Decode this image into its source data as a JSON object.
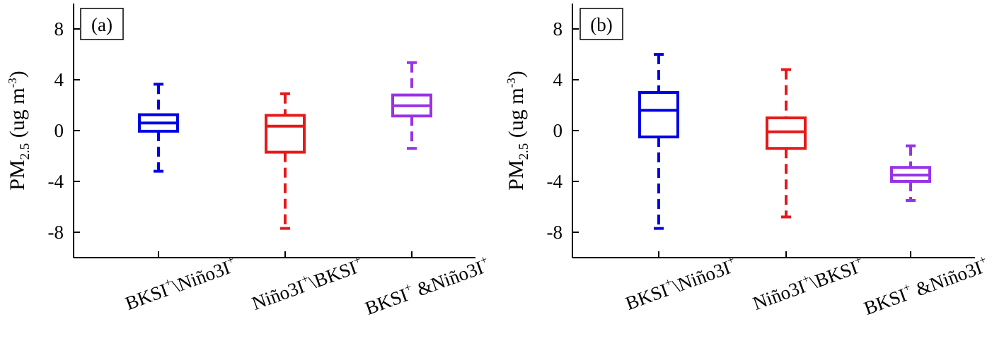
{
  "chart_data": [
    {
      "type": "box",
      "panel_label": "(a)",
      "ylabel": {
        "base": "PM",
        "sub": "2.5",
        "unit_open": " (ug m",
        "unit_sup": "-3",
        "unit_close": ")"
      },
      "ylim": [
        -10,
        10
      ],
      "yticks": [
        -8,
        -4,
        0,
        4,
        8
      ],
      "grid": false,
      "categories": [
        {
          "parts": [
            [
              "BKSI",
              ""
            ],
            [
              "+",
              "sup"
            ],
            [
              "\\Niño3I",
              ""
            ],
            [
              "+",
              "sup"
            ]
          ]
        },
        {
          "parts": [
            [
              "Niño3I",
              ""
            ],
            [
              "+",
              "sup"
            ],
            [
              "\\BKSI",
              ""
            ],
            [
              "+",
              "sup"
            ]
          ]
        },
        {
          "parts": [
            [
              "BKSI",
              ""
            ],
            [
              "+",
              "sup"
            ],
            [
              " &Niño3I",
              ""
            ],
            [
              "+",
              "sup"
            ]
          ]
        }
      ],
      "series": [
        {
          "color": "#0000e6",
          "whisker_low": -3.2,
          "q1": -0.05,
          "median": 0.6,
          "q3": 1.25,
          "whisker_high": 3.65
        },
        {
          "color": "#e61919",
          "whisker_low": -7.7,
          "q1": -1.7,
          "median": 0.35,
          "q3": 1.2,
          "whisker_high": 2.9
        },
        {
          "color": "#9933e6",
          "whisker_low": -1.4,
          "q1": 1.15,
          "median": 1.95,
          "q3": 2.8,
          "whisker_high": 5.35
        }
      ]
    },
    {
      "type": "box",
      "panel_label": "(b)",
      "ylabel": {
        "base": "PM",
        "sub": "2.5",
        "unit_open": " (ug m",
        "unit_sup": "-3",
        "unit_close": ")"
      },
      "ylim": [
        -10,
        10
      ],
      "yticks": [
        -8,
        -4,
        0,
        4,
        8
      ],
      "grid": false,
      "categories": [
        {
          "parts": [
            [
              "BKSI",
              ""
            ],
            [
              "+",
              "sup"
            ],
            [
              "\\Niño3I",
              ""
            ],
            [
              "+",
              "sup"
            ]
          ]
        },
        {
          "parts": [
            [
              "Niño3I",
              ""
            ],
            [
              "+",
              "sup"
            ],
            [
              "\\BKSI",
              ""
            ],
            [
              "+",
              "sup"
            ]
          ]
        },
        {
          "parts": [
            [
              "BKSI",
              ""
            ],
            [
              "+",
              "sup"
            ],
            [
              " &Niño3I",
              ""
            ],
            [
              "+",
              "sup"
            ]
          ]
        }
      ],
      "series": [
        {
          "color": "#0000e6",
          "whisker_low": -7.7,
          "q1": -0.5,
          "median": 1.6,
          "q3": 3.0,
          "whisker_high": 6.0
        },
        {
          "color": "#e61919",
          "whisker_low": -6.8,
          "q1": -1.4,
          "median": -0.1,
          "q3": 1.0,
          "whisker_high": 4.8
        },
        {
          "color": "#9933e6",
          "whisker_low": -5.5,
          "q1": -4.0,
          "median": -3.5,
          "q3": -2.9,
          "whisker_high": -1.2
        }
      ]
    }
  ]
}
